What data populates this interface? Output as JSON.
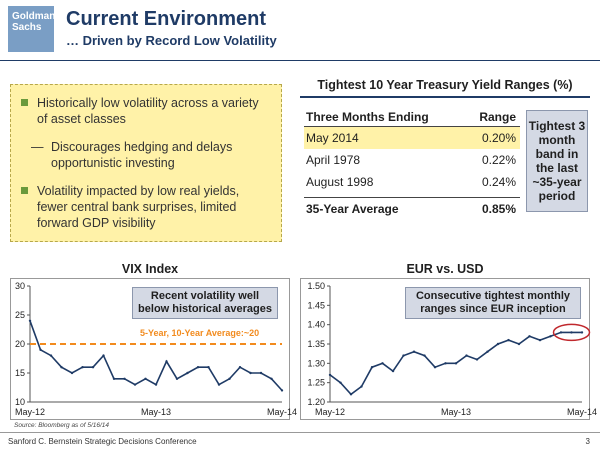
{
  "header": {
    "logo_text": "Goldman Sachs",
    "title": "Current Environment",
    "subtitle": "… Driven by Record Low Volatility"
  },
  "bullets": {
    "items": [
      {
        "kind": "bullet",
        "text": "Historically low volatility across a variety of asset classes"
      },
      {
        "kind": "sub",
        "text": "Discourages hedging and delays opportunistic investing"
      },
      {
        "kind": "bullet",
        "text": "Volatility impacted by low real yields, fewer central bank surprises, limited forward GDP visibility"
      }
    ]
  },
  "table": {
    "title": "Tightest 10 Year Treasury Yield Ranges (%)",
    "col1": "Three Months Ending",
    "col2": "Range",
    "rows": [
      {
        "period": "May 2014",
        "range": "0.20%"
      },
      {
        "period": "April 1978",
        "range": "0.22%"
      },
      {
        "period": "August 1998",
        "range": "0.24%"
      }
    ],
    "avg_label": "35-Year Average",
    "avg_value": "0.85%",
    "callout": "Tightest 3 month band in the last ~35-year period"
  },
  "vix": {
    "note": "Recent volatility well below historical averages",
    "avg_label": "5-Year, 10-Year Average:~20"
  },
  "eur": {
    "note": "Consecutive tightest monthly ranges since EUR inception"
  },
  "chart_data": [
    {
      "type": "line",
      "title": "VIX Index",
      "x_ticks": [
        "May-12",
        "May-13",
        "May-14"
      ],
      "ylim": [
        10,
        30
      ],
      "y_ticks": [
        10,
        15,
        20,
        25,
        30
      ],
      "reference_line": {
        "label": "5-Year, 10-Year Average:~20",
        "value": 20
      },
      "series": [
        {
          "x": [
            "2012-05",
            "2012-06",
            "2012-07",
            "2012-08",
            "2012-09",
            "2012-10",
            "2012-11",
            "2012-12",
            "2013-01",
            "2013-02",
            "2013-03",
            "2013-04",
            "2013-05",
            "2013-06",
            "2013-07",
            "2013-08",
            "2013-09",
            "2013-10",
            "2013-11",
            "2013-12",
            "2014-01",
            "2014-02",
            "2014-03",
            "2014-04",
            "2014-05"
          ],
          "values": [
            24,
            19,
            18,
            16,
            15,
            16,
            16,
            18,
            14,
            14,
            13,
            14,
            13,
            17,
            14,
            15,
            16,
            16,
            13,
            14,
            16,
            15,
            15,
            14,
            12
          ]
        }
      ]
    },
    {
      "type": "line",
      "title": "EUR vs. USD",
      "x_ticks": [
        "May-12",
        "May-13",
        "May-14"
      ],
      "ylim": [
        1.2,
        1.5
      ],
      "y_ticks": [
        1.2,
        1.25,
        1.3,
        1.35,
        1.4,
        1.45,
        1.5
      ],
      "series": [
        {
          "x": [
            "2012-05",
            "2012-06",
            "2012-07",
            "2012-08",
            "2012-09",
            "2012-10",
            "2012-11",
            "2012-12",
            "2013-01",
            "2013-02",
            "2013-03",
            "2013-04",
            "2013-05",
            "2013-06",
            "2013-07",
            "2013-08",
            "2013-09",
            "2013-10",
            "2013-11",
            "2013-12",
            "2014-01",
            "2014-02",
            "2014-03",
            "2014-04",
            "2014-05"
          ],
          "values": [
            1.27,
            1.25,
            1.22,
            1.24,
            1.29,
            1.3,
            1.28,
            1.32,
            1.33,
            1.32,
            1.29,
            1.3,
            1.3,
            1.32,
            1.31,
            1.33,
            1.35,
            1.36,
            1.35,
            1.37,
            1.36,
            1.37,
            1.38,
            1.38,
            1.38
          ]
        }
      ]
    }
  ],
  "source": "Source: Bloomberg as of 5/16/14",
  "footer": "Sanford C. Bernstein Strategic Decisions Conference",
  "page": "3",
  "colors": {
    "navy": "#1f3b66",
    "callout": "#d4d9e4",
    "highlight": "#fff2a8",
    "avg_line": "#f28b1e",
    "bullet": "#6a9a3c",
    "circle": "#c0282d"
  }
}
